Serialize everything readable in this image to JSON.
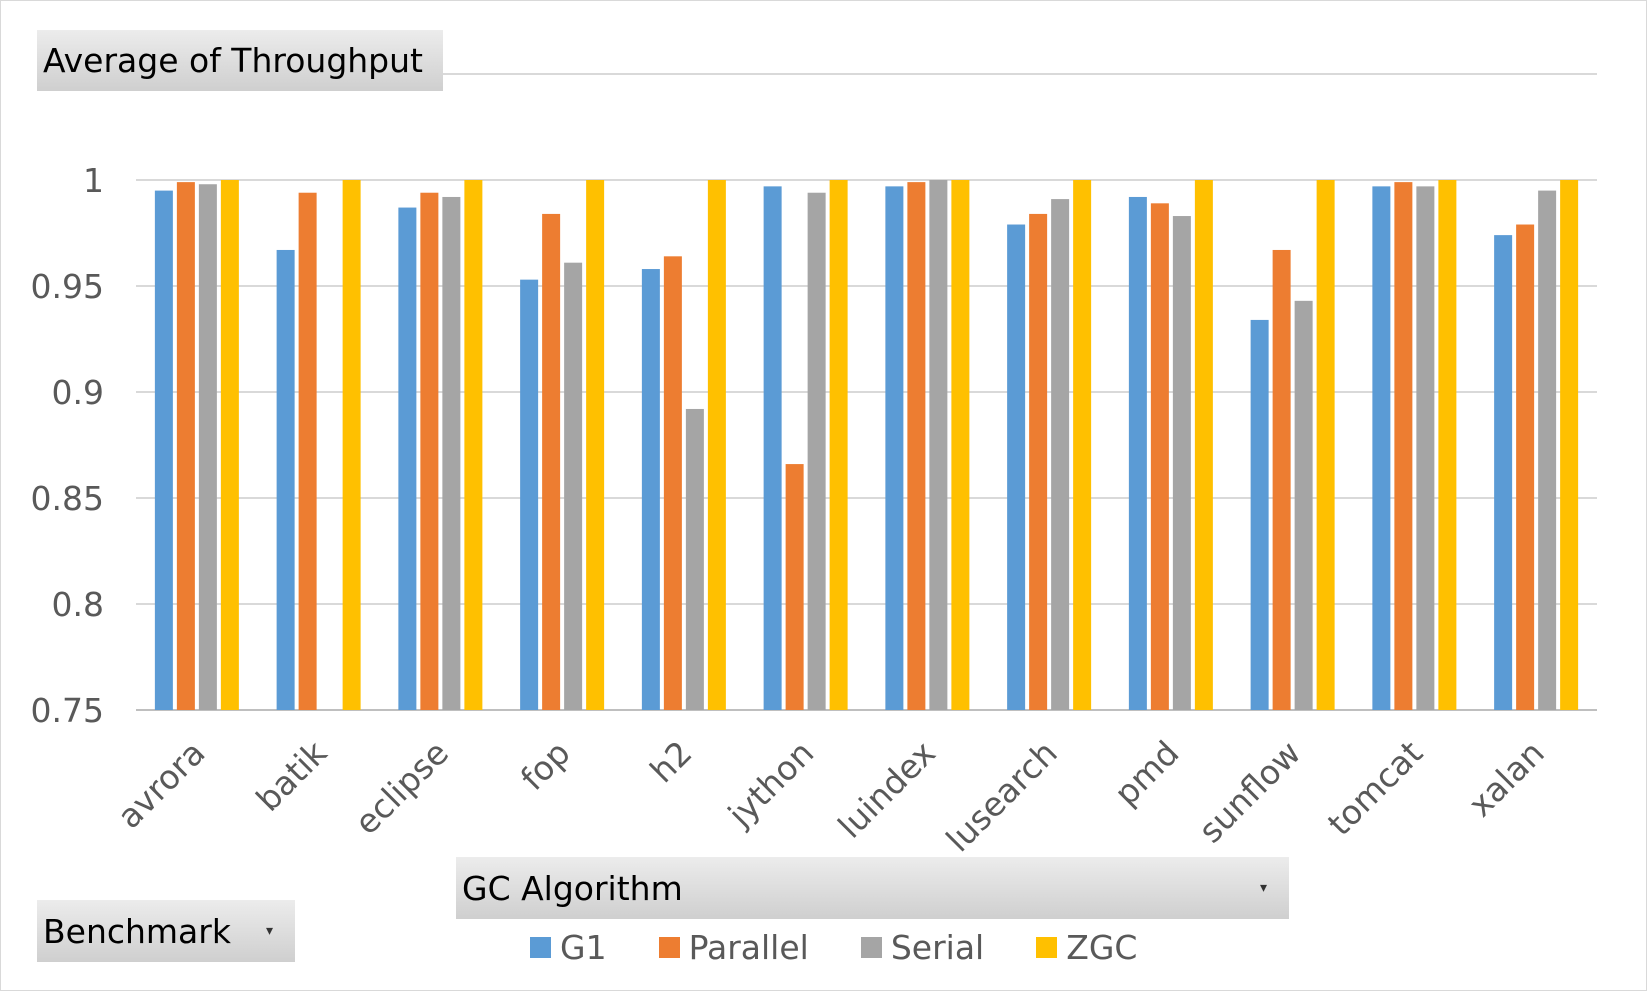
{
  "chart_title_button": {
    "label": "Average  of Throughput"
  },
  "series_field_button": {
    "label": "GC Algorithm"
  },
  "category_field_button": {
    "label": "Benchmark"
  },
  "chart_data": {
    "type": "bar",
    "title": "Average  of Throughput",
    "xlabel": "",
    "ylabel": "",
    "ylim": [
      0.75,
      1.0
    ],
    "yticks": [
      "0.75",
      "0.8",
      "0.85",
      "0.9",
      "0.95",
      "1",
      "1"
    ],
    "grid": true,
    "legend_position": "bottom",
    "categories": [
      "avrora",
      "batik",
      "eclipse",
      "fop",
      "h2",
      "jython",
      "luindex",
      "lusearch",
      "pmd",
      "sunflow",
      "tomcat",
      "xalan"
    ],
    "series": [
      {
        "name": "G1",
        "color": "#5b9bd5",
        "values": [
          0.995,
          0.967,
          0.987,
          0.953,
          0.958,
          0.997,
          0.997,
          0.979,
          0.992,
          0.934,
          0.997,
          0.974
        ]
      },
      {
        "name": "Parallel",
        "color": "#ed7d31",
        "values": [
          0.999,
          0.994,
          0.994,
          0.984,
          0.964,
          0.866,
          0.999,
          0.984,
          0.989,
          0.967,
          0.999,
          0.979
        ]
      },
      {
        "name": "Serial",
        "color": "#a5a5a5",
        "values": [
          0.998,
          null,
          0.992,
          0.961,
          0.892,
          0.994,
          1.0,
          0.991,
          0.983,
          0.943,
          0.997,
          0.995
        ]
      },
      {
        "name": "ZGC",
        "color": "#ffc000",
        "values": [
          1.0,
          1.0,
          1.0,
          1.0,
          1.0,
          1.0,
          1.0,
          1.0,
          1.0,
          1.0,
          1.0,
          1.0
        ]
      }
    ]
  }
}
